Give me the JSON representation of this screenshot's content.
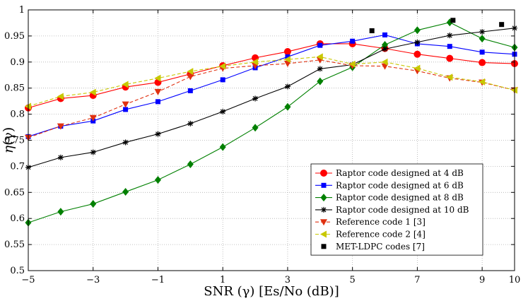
{
  "chart_data": {
    "type": "line",
    "xlabel": "SNR (γ) [Es/No (dB)]",
    "ylabel": "η(γ)",
    "ylabel_symbol": "η",
    "ylabel_arg": "(γ)",
    "xlim": [
      -5,
      10
    ],
    "ylim": [
      0.5,
      1.0
    ],
    "xticks": [
      -5,
      -3,
      -1,
      1,
      3,
      5,
      7,
      9,
      10
    ],
    "yticks": [
      0.5,
      0.55,
      0.6,
      0.65,
      0.7,
      0.75,
      0.8,
      0.85,
      0.9,
      0.95,
      1
    ],
    "xtick_labels": [
      "−5",
      "−3",
      "−1",
      "1",
      "3",
      "5",
      "7",
      "9",
      "10"
    ],
    "ytick_labels": [
      "0.5",
      "0.55",
      "0.6",
      "0.65",
      "0.7",
      "0.75",
      "0.8",
      "0.85",
      "0.9",
      "0.95",
      "1"
    ],
    "grid": true,
    "legend_position": "bottom-right",
    "series": [
      {
        "name": "Raptor code designed at 4 dB",
        "color": "#ff0000",
        "marker": "circle",
        "dash": false,
        "x": [
          -5,
          -4,
          -3,
          -2,
          -1,
          0,
          1,
          2,
          3,
          4,
          5,
          6,
          7,
          8,
          9,
          10
        ],
        "y": [
          0.812,
          0.83,
          0.836,
          0.852,
          0.861,
          0.877,
          0.893,
          0.908,
          0.92,
          0.935,
          0.935,
          0.926,
          0.915,
          0.907,
          0.899,
          0.897
        ]
      },
      {
        "name": "Raptor code designed at 6 dB",
        "color": "#0000ff",
        "marker": "square",
        "dash": false,
        "x": [
          -5,
          -4,
          -3,
          -2,
          -1,
          0,
          1,
          2,
          3,
          4,
          5,
          6,
          7,
          8,
          9,
          10
        ],
        "y": [
          0.757,
          0.777,
          0.787,
          0.809,
          0.824,
          0.845,
          0.866,
          0.889,
          0.91,
          0.932,
          0.94,
          0.952,
          0.935,
          0.93,
          0.919,
          0.915
        ]
      },
      {
        "name": "Raptor code designed at 8 dB",
        "color": "#008000",
        "marker": "diamond",
        "dash": false,
        "x": [
          -5,
          -4,
          -3,
          -2,
          -1,
          0,
          1,
          2,
          3,
          4,
          5,
          6,
          7,
          8,
          9,
          10
        ],
        "y": [
          0.592,
          0.613,
          0.628,
          0.651,
          0.674,
          0.704,
          0.737,
          0.774,
          0.814,
          0.863,
          0.89,
          0.933,
          0.961,
          0.976,
          0.945,
          0.928
        ]
      },
      {
        "name": "Raptor code designed at 10 dB",
        "color": "#000000",
        "marker": "star",
        "dash": false,
        "x": [
          -5,
          -4,
          -3,
          -2,
          -1,
          0,
          1,
          2,
          3,
          4,
          5,
          6,
          7,
          8,
          9,
          10
        ],
        "y": [
          0.698,
          0.717,
          0.727,
          0.746,
          0.762,
          0.782,
          0.805,
          0.83,
          0.853,
          0.887,
          0.895,
          0.925,
          0.938,
          0.951,
          0.958,
          0.965
        ]
      },
      {
        "name": "Reference code 1 [3]",
        "color": "#e03010",
        "marker": "triangle-down",
        "dash": true,
        "x": [
          -5,
          -4,
          -3,
          -2,
          -1,
          0,
          1,
          2,
          3,
          4,
          5,
          6,
          7,
          8,
          9,
          10
        ],
        "y": [
          0.755,
          0.777,
          0.793,
          0.819,
          0.843,
          0.872,
          0.888,
          0.893,
          0.897,
          0.904,
          0.893,
          0.892,
          0.883,
          0.869,
          0.861,
          0.846
        ]
      },
      {
        "name": "Reference code 2 [4]",
        "color": "#c8c800",
        "marker": "triangle-left",
        "dash": true,
        "x": [
          -5,
          -4,
          -3,
          -2,
          -1,
          0,
          1,
          2,
          3,
          4,
          5,
          6,
          7,
          8,
          9,
          10
        ],
        "y": [
          0.815,
          0.834,
          0.842,
          0.857,
          0.869,
          0.882,
          0.892,
          0.9,
          0.905,
          0.91,
          0.896,
          0.9,
          0.888,
          0.871,
          0.862,
          0.846
        ]
      },
      {
        "name": "MET-LDPC codes [7]",
        "color": "#000000",
        "marker": "square-filled",
        "dash": false,
        "no_line": true,
        "x": [
          5.6,
          8.1,
          9.6
        ],
        "y": [
          0.96,
          0.98,
          0.972
        ]
      }
    ]
  }
}
